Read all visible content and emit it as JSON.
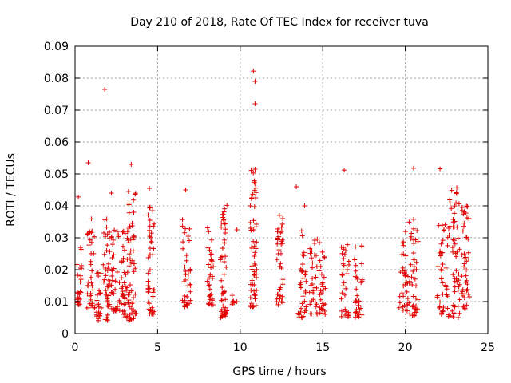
{
  "chart_data": {
    "type": "scatter",
    "title": "Day 210 of 2018, Rate Of TEC Index for receiver tuva",
    "xlabel": "GPS time / hours",
    "ylabel": "ROTI / TECUs",
    "xlim": [
      0,
      25
    ],
    "ylim": [
      0,
      0.09
    ],
    "xticks": [
      "0",
      "5",
      "10",
      "15",
      "20",
      "25"
    ],
    "yticks": [
      "0",
      "0.01",
      "0.02",
      "0.03",
      "0.04",
      "0.05",
      "0.06",
      "0.07",
      "0.08",
      "0.09"
    ],
    "grid": true,
    "marker": "+",
    "marker_color": "#e00000",
    "series": [
      {
        "name": "ROTI",
        "clusters": [
          {
            "x": [
              0.1,
              0.4
            ],
            "y": [
              0.009,
              0.027
            ]
          },
          {
            "x": [
              0.7,
              1.2
            ],
            "y": [
              0.008,
              0.036
            ]
          },
          {
            "x": [
              1.3,
              1.6
            ],
            "y": [
              0.004,
              0.02
            ]
          },
          {
            "x": [
              1.7,
              2.1
            ],
            "y": [
              0.004,
              0.036
            ]
          },
          {
            "x": [
              2.2,
              2.7
            ],
            "y": [
              0.007,
              0.034
            ]
          },
          {
            "x": [
              2.8,
              3.2
            ],
            "y": [
              0.005,
              0.033
            ]
          },
          {
            "x": [
              3.2,
              3.7
            ],
            "y": [
              0.004,
              0.045
            ]
          },
          {
            "x": [
              4.4,
              4.8
            ],
            "y": [
              0.006,
              0.04
            ]
          },
          {
            "x": [
              6.5,
              7.0
            ],
            "y": [
              0.008,
              0.036
            ]
          },
          {
            "x": [
              8.0,
              8.4
            ],
            "y": [
              0.009,
              0.035
            ]
          },
          {
            "x": [
              8.8,
              9.2
            ],
            "y": [
              0.005,
              0.042
            ]
          },
          {
            "x": [
              9.5,
              9.8
            ],
            "y": [
              0.009,
              0.012
            ]
          },
          {
            "x": [
              10.6,
              11.0
            ],
            "y": [
              0.008,
              0.052
            ]
          },
          {
            "x": [
              12.2,
              12.6
            ],
            "y": [
              0.009,
              0.038
            ]
          },
          {
            "x": [
              13.5,
              14.0
            ],
            "y": [
              0.005,
              0.033
            ]
          },
          {
            "x": [
              14.2,
              14.8
            ],
            "y": [
              0.006,
              0.03
            ]
          },
          {
            "x": [
              14.8,
              15.2
            ],
            "y": [
              0.006,
              0.026
            ]
          },
          {
            "x": [
              16.1,
              16.6
            ],
            "y": [
              0.005,
              0.028
            ]
          },
          {
            "x": [
              16.9,
              17.4
            ],
            "y": [
              0.005,
              0.03
            ]
          },
          {
            "x": [
              19.6,
              20.2
            ],
            "y": [
              0.007,
              0.032
            ]
          },
          {
            "x": [
              20.2,
              20.8
            ],
            "y": [
              0.005,
              0.036
            ]
          },
          {
            "x": [
              21.9,
              22.6
            ],
            "y": [
              0.006,
              0.035
            ]
          },
          {
            "x": [
              22.6,
              23.3
            ],
            "y": [
              0.005,
              0.046
            ]
          },
          {
            "x": [
              23.4,
              23.9
            ],
            "y": [
              0.007,
              0.04
            ]
          }
        ],
        "outliers": [
          {
            "x": 1.8,
            "y": 0.0765
          },
          {
            "x": 0.8,
            "y": 0.0535
          },
          {
            "x": 3.4,
            "y": 0.053
          },
          {
            "x": 10.8,
            "y": 0.0822
          },
          {
            "x": 10.9,
            "y": 0.079
          },
          {
            "x": 10.9,
            "y": 0.072
          },
          {
            "x": 10.9,
            "y": 0.0515
          },
          {
            "x": 16.3,
            "y": 0.0512
          },
          {
            "x": 20.5,
            "y": 0.0518
          },
          {
            "x": 22.1,
            "y": 0.0516
          },
          {
            "x": 0.2,
            "y": 0.0428
          },
          {
            "x": 6.7,
            "y": 0.045
          },
          {
            "x": 9.8,
            "y": 0.0325
          },
          {
            "x": 13.4,
            "y": 0.046
          },
          {
            "x": 13.9,
            "y": 0.04
          },
          {
            "x": 2.2,
            "y": 0.044
          },
          {
            "x": 4.5,
            "y": 0.0455
          }
        ]
      }
    ]
  }
}
